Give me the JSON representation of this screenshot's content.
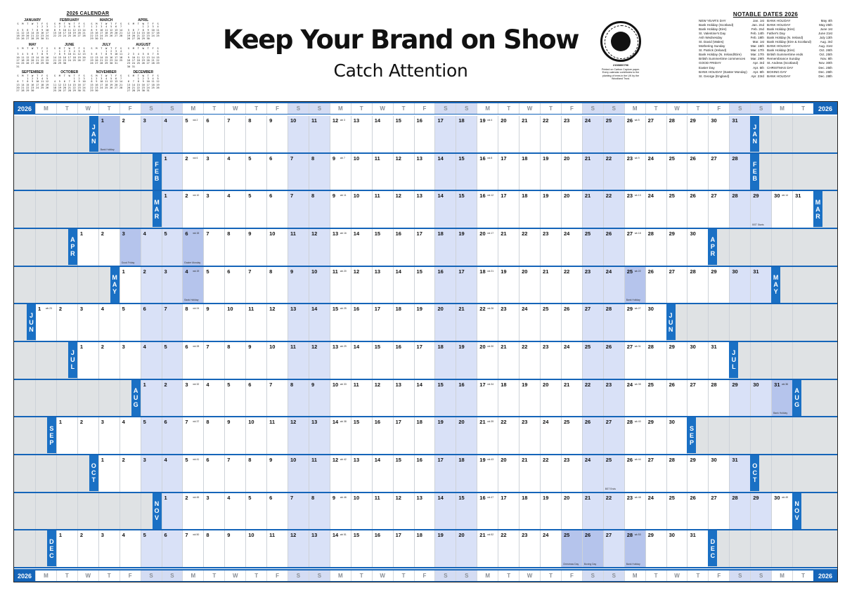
{
  "header": {
    "headline": "Keep Your Brand on Show",
    "subheadline": "Catch Attention"
  },
  "mini_calendar": {
    "title": "2026 CALENDAR",
    "day_letters": [
      "S",
      "M",
      "T",
      "W",
      "T",
      "F",
      "S"
    ],
    "months": [
      "JANUARY",
      "FEBRUARY",
      "MARCH",
      "APRIL",
      "MAY",
      "JUNE",
      "JULY",
      "AUGUST",
      "SEPTEMBER",
      "OCTOBER",
      "NOVEMBER",
      "DECEMBER"
    ]
  },
  "logo": {
    "name": "woodland-trust-seal",
    "reg_number": "2108800796",
    "caption": "Printed on Carbon Capture paper. Every calendar contributes to the planting of trees in the UK by the Woodland Trust."
  },
  "notable_dates": {
    "title": "NOTABLE DATES 2026",
    "left": [
      [
        "NEW YEAR'S DAY",
        "Jan. 1st"
      ],
      [
        "Bank Holiday (Scotland)",
        "Jan. 2nd"
      ],
      [
        "Bank Holiday (Eire)",
        "Feb. 2nd"
      ],
      [
        "St. Valentine's Day",
        "Feb. 14th"
      ],
      [
        "Ash Wednesday",
        "Feb. 18th"
      ],
      [
        "St. David (Wales)",
        "Mar. 1st"
      ],
      [
        "Mothering Sunday",
        "Mar. 15th"
      ],
      [
        "St. Patrick (Ireland)",
        "Mar. 17th"
      ],
      [
        "Bank Holiday (N. Ireland/Eire)",
        "Mar. 17th"
      ],
      [
        "British Summertime commences",
        "Mar. 29th"
      ],
      [
        "GOOD FRIDAY",
        "Apr. 3rd"
      ],
      [
        "Easter Day",
        "Apr. 5th"
      ],
      [
        "BANK HOLIDAY (Easter Monday)",
        "Apr. 6th"
      ],
      [
        "St. George (England)",
        "Apr. 23rd"
      ]
    ],
    "right": [
      [
        "BANK HOLIDAY",
        "May 4th"
      ],
      [
        "BANK HOLIDAY",
        "May 25th"
      ],
      [
        "Bank Holiday (Eire)",
        "June 1st"
      ],
      [
        "Father's Day",
        "June 21st"
      ],
      [
        "Bank Holiday (N. Ireland)",
        "July 13th"
      ],
      [
        "Bank Holiday (Eire & Scotland)",
        "Aug. 3rd"
      ],
      [
        "BANK HOLIDAY",
        "Aug. 31st"
      ],
      [
        "Bank Holiday (Eire)",
        "Oct. 26th"
      ],
      [
        "British Summertime ends",
        "Oct. 25th"
      ],
      [
        "Remembrance Sunday",
        "Nov. 8th"
      ],
      [
        "St. Andrew (Scotland)",
        "Nov. 30th"
      ],
      [
        "CHRISTMAS DAY",
        "Dec. 25th"
      ],
      [
        "BOXING DAY",
        "Dec. 26th"
      ],
      [
        "BANK HOLIDAY",
        "Dec. 28th"
      ]
    ]
  },
  "planner": {
    "year_label": "2026",
    "weekday_header": [
      "M",
      "T",
      "W",
      "T",
      "F",
      "S",
      "S",
      "M",
      "T",
      "W",
      "T",
      "F",
      "S",
      "S",
      "M",
      "T",
      "W",
      "T",
      "F",
      "S",
      "S",
      "M",
      "T",
      "W",
      "T",
      "F",
      "S",
      "S",
      "M",
      "T",
      "W",
      "T",
      "F",
      "S",
      "S",
      "M",
      "T"
    ],
    "week_prefix": "wk",
    "months": [
      {
        "abbr": "JAN",
        "start": 3,
        "days": 31,
        "holidays": [
          1
        ],
        "notes": {
          "1": "Bank Holiday"
        }
      },
      {
        "abbr": "FEB",
        "start": 6,
        "days": 28,
        "holidays": [],
        "notes": {}
      },
      {
        "abbr": "MAR",
        "start": 6,
        "days": 31,
        "holidays": [],
        "notes": {
          "29": "BST Starts"
        }
      },
      {
        "abbr": "APR",
        "start": 2,
        "days": 30,
        "holidays": [
          3,
          6
        ],
        "notes": {
          "3": "Good Friday",
          "6": "Easter Monday"
        }
      },
      {
        "abbr": "MAY",
        "start": 4,
        "days": 31,
        "holidays": [
          4,
          25
        ],
        "notes": {
          "4": "Bank Holiday",
          "25": "Bank Holiday"
        }
      },
      {
        "abbr": "JUN",
        "start": 0,
        "days": 30,
        "holidays": [],
        "notes": {}
      },
      {
        "abbr": "JUL",
        "start": 2,
        "days": 31,
        "holidays": [],
        "notes": {}
      },
      {
        "abbr": "AUG",
        "start": 5,
        "days": 31,
        "holidays": [
          31
        ],
        "notes": {
          "31": "Bank Holiday"
        }
      },
      {
        "abbr": "SEP",
        "start": 1,
        "days": 30,
        "holidays": [],
        "notes": {}
      },
      {
        "abbr": "OCT",
        "start": 3,
        "days": 31,
        "holidays": [],
        "notes": {
          "25": "BST Ends"
        }
      },
      {
        "abbr": "NOV",
        "start": 6,
        "days": 30,
        "holidays": [],
        "notes": {}
      },
      {
        "abbr": "DEC",
        "start": 1,
        "days": 31,
        "holidays": [
          25,
          26,
          28
        ],
        "notes": {
          "25": "Christmas Day",
          "26": "Boxing Day",
          "28": "Bank Holiday"
        }
      }
    ]
  },
  "colors": {
    "brand_blue": "#1565b9",
    "weekend_shade": "#d9e1f7",
    "holiday_shade": "#b5c4ec",
    "blank_shade": "#dfe2e4"
  }
}
